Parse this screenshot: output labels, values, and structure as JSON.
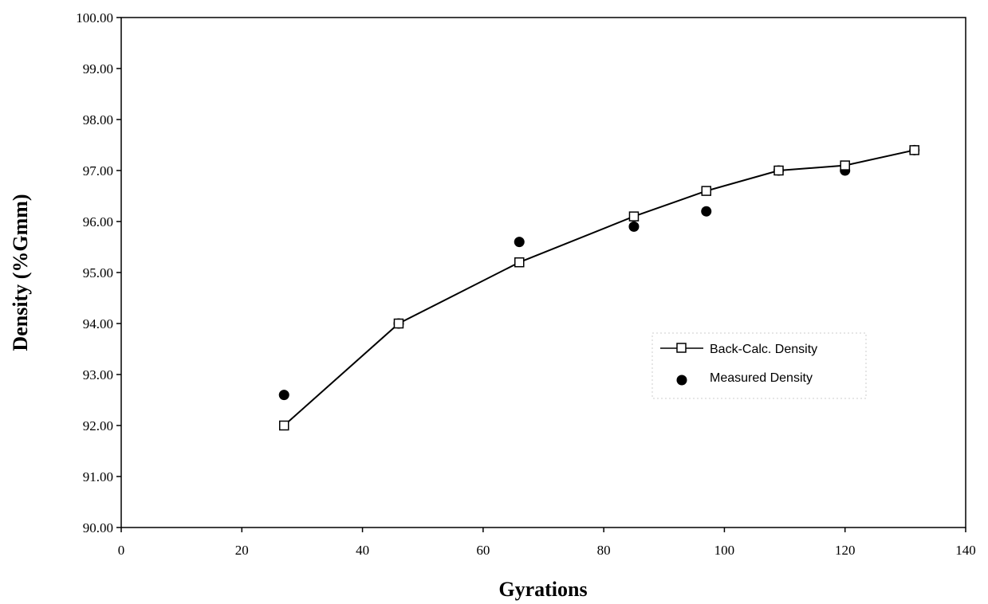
{
  "chart_data": {
    "type": "line",
    "title": "",
    "xlabel": "Gyrations",
    "ylabel": "Density (%Gmm)",
    "xlim": [
      0,
      140
    ],
    "ylim": [
      90,
      100
    ],
    "x_ticks": [
      0,
      20,
      40,
      60,
      80,
      100,
      120,
      140
    ],
    "x_tick_labels": [
      "0",
      "20",
      "40",
      "60",
      "80",
      "100",
      "120",
      "140"
    ],
    "y_ticks": [
      90,
      91,
      92,
      93,
      94,
      95,
      96,
      97,
      98,
      99,
      100
    ],
    "y_tick_labels": [
      "90.00",
      "91.00",
      "92.00",
      "93.00",
      "94.00",
      "95.00",
      "96.00",
      "97.00",
      "98.00",
      "99.00",
      "100.00"
    ],
    "grid": false,
    "legend_position": "right",
    "series": [
      {
        "name": "Back-Calc. Density",
        "style": "line-open-square",
        "color": "#000000",
        "x": [
          27,
          46,
          66,
          85,
          97,
          109,
          120,
          131.5
        ],
        "y": [
          92.0,
          94.0,
          95.2,
          96.1,
          96.6,
          97.0,
          97.1,
          97.4
        ]
      },
      {
        "name": "Measured Density",
        "style": "filled-circle",
        "color": "#000000",
        "x": [
          27,
          46,
          66,
          85,
          97,
          109,
          120,
          131.5
        ],
        "y": [
          92.6,
          94.0,
          95.6,
          95.9,
          96.2,
          97.0,
          97.0,
          97.4
        ]
      }
    ]
  }
}
